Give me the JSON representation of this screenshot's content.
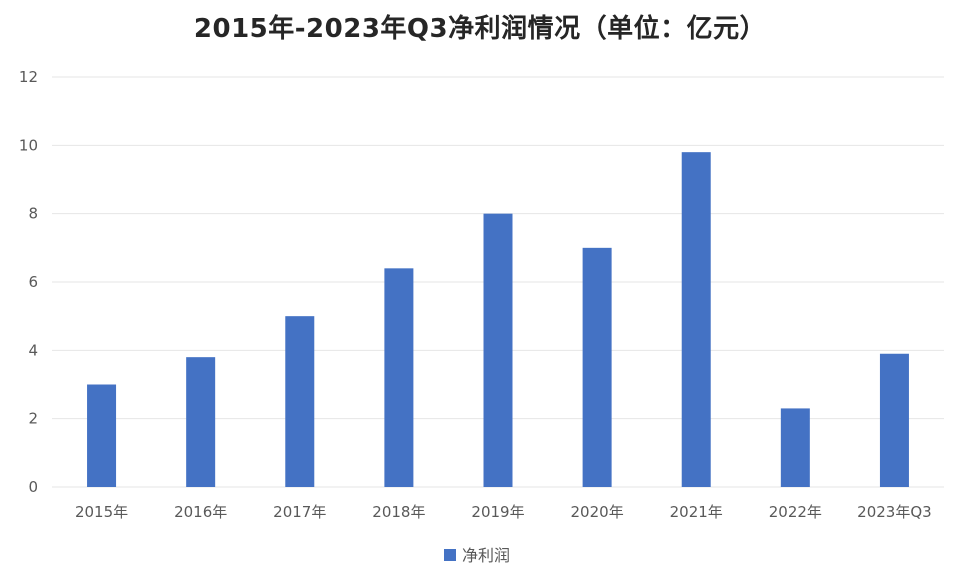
{
  "chart_data": {
    "type": "bar",
    "title": "2015年-2023年Q3净利润情况（单位：亿元）",
    "categories": [
      "2015年",
      "2016年",
      "2017年",
      "2018年",
      "2019年",
      "2020年",
      "2021年",
      "2022年",
      "2023年Q3"
    ],
    "series": [
      {
        "name": "净利润",
        "color": "#4472C4",
        "values": [
          3.0,
          3.8,
          5.0,
          6.4,
          8.0,
          7.0,
          9.8,
          2.3,
          3.9
        ]
      }
    ],
    "ylim": [
      0,
      12
    ],
    "yticks": [
      0,
      2,
      4,
      6,
      8,
      10,
      12
    ],
    "grid": true,
    "legend": "bottom-center",
    "gridline_color": "#e6e6e6"
  }
}
